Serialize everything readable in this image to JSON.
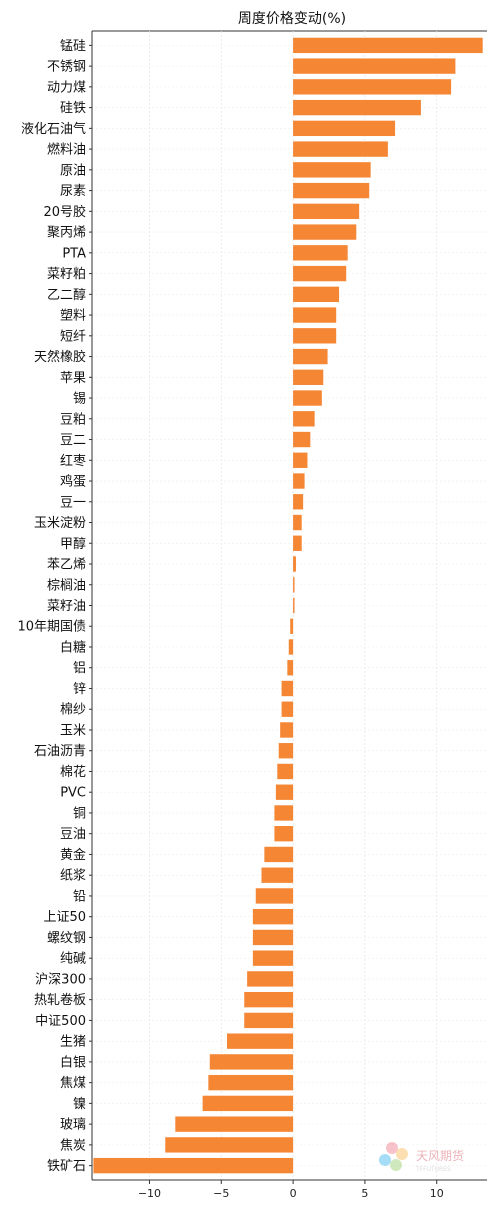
{
  "chart_data": {
    "type": "bar",
    "orientation": "horizontal",
    "title": "周度价格变动(%)",
    "xlabel": "",
    "ylabel": "",
    "xlim": [
      -14,
      13.5
    ],
    "xticks": [
      -10,
      -5,
      0,
      5,
      10
    ],
    "grid": true,
    "bar_color": "#f58634",
    "categories": [
      "锰硅",
      "不锈钢",
      "动力煤",
      "硅铁",
      "液化石油气",
      "燃料油",
      "原油",
      "尿素",
      "20号胶",
      "聚丙烯",
      "PTA",
      "菜籽粕",
      "乙二醇",
      "塑料",
      "短纤",
      "天然橡胶",
      "苹果",
      "锡",
      "豆粕",
      "豆二",
      "红枣",
      "鸡蛋",
      "豆一",
      "玉米淀粉",
      "甲醇",
      "苯乙烯",
      "棕榈油",
      "菜籽油",
      "10年期国债",
      "白糖",
      "铝",
      "锌",
      "棉纱",
      "玉米",
      "石油沥青",
      "棉花",
      "PVC",
      "铜",
      "豆油",
      "黄金",
      "纸浆",
      "铅",
      "上证50",
      "螺纹钢",
      "纯碱",
      "沪深300",
      "热轧卷板",
      "中证500",
      "生猪",
      "白银",
      "焦煤",
      "镍",
      "玻璃",
      "焦炭",
      "铁矿石"
    ],
    "values": [
      13.2,
      11.3,
      11.0,
      8.9,
      7.1,
      6.6,
      5.4,
      5.3,
      4.6,
      4.4,
      3.8,
      3.7,
      3.2,
      3.0,
      3.0,
      2.4,
      2.1,
      2.0,
      1.5,
      1.2,
      1.0,
      0.8,
      0.7,
      0.6,
      0.6,
      0.2,
      0.1,
      0.1,
      -0.2,
      -0.3,
      -0.4,
      -0.8,
      -0.8,
      -0.9,
      -1.0,
      -1.1,
      -1.2,
      -1.3,
      -1.3,
      -2.0,
      -2.2,
      -2.6,
      -2.8,
      -2.8,
      -2.8,
      -3.2,
      -3.4,
      -3.4,
      -4.6,
      -5.8,
      -5.9,
      -6.3,
      -8.2,
      -8.9,
      -13.9
    ]
  },
  "watermark": {
    "text": "天风期货",
    "subtext": "TFFUTURES",
    "colors": [
      "#e9546b",
      "#f5a623",
      "#7ac143",
      "#00a0e9"
    ]
  }
}
